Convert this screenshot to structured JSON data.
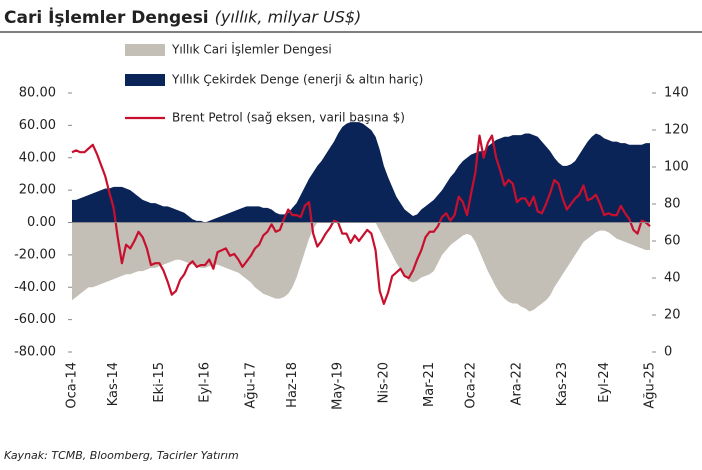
{
  "chart_data": {
    "type": "area",
    "title": "Cari İşlemler Dengesi",
    "subtitle": "(yıllık, milyar US$)",
    "source": "Kaynak: TCMB, Bloomberg, Tacirler Yatırım",
    "categories": [
      "Oca-14",
      null,
      null,
      null,
      null,
      null,
      null,
      null,
      null,
      null,
      "Kas-14",
      null,
      null,
      null,
      null,
      null,
      null,
      null,
      null,
      null,
      null,
      "Eki-15",
      null,
      null,
      null,
      null,
      null,
      null,
      null,
      null,
      null,
      null,
      "Eyl-16",
      null,
      null,
      null,
      null,
      null,
      null,
      null,
      null,
      null,
      null,
      "Ağu-17",
      null,
      null,
      null,
      null,
      null,
      null,
      null,
      null,
      null,
      "Haz-18",
      null,
      null,
      null,
      null,
      null,
      null,
      null,
      null,
      null,
      null,
      "May-19",
      null,
      null,
      null,
      null,
      null,
      null,
      null,
      null,
      null,
      null,
      "Nis-20",
      null,
      null,
      null,
      null,
      null,
      null,
      null,
      null,
      null,
      null,
      "Mar-21",
      null,
      null,
      null,
      null,
      null,
      null,
      null,
      null,
      null,
      "Oca-22",
      null,
      null,
      null,
      null,
      null,
      null,
      null,
      null,
      null,
      null,
      "Ara-22",
      null,
      null,
      null,
      null,
      null,
      null,
      null,
      null,
      null,
      null,
      "Kas-23",
      null,
      null,
      null,
      null,
      null,
      null,
      null,
      null,
      null,
      "Eyl-24",
      null,
      null,
      null,
      null,
      null,
      null,
      null,
      null,
      null,
      null,
      "Ağu-25"
    ],
    "series": [
      {
        "name": "Yıllık Cari İşlemler Dengesi",
        "type": "area",
        "color": "#c3beb6",
        "values": [
          -48,
          -46,
          -44,
          -42,
          -40,
          -40,
          -39,
          -38,
          -37,
          -36,
          -35,
          -34,
          -33,
          -32,
          -32,
          -31,
          -30,
          -30,
          -29,
          -28,
          -28,
          -27,
          -26,
          -25,
          -24,
          -23,
          -23,
          -24,
          -25,
          -26,
          -27,
          -28,
          -28,
          -27,
          -26,
          -26,
          -27,
          -28,
          -29,
          -30,
          -31,
          -33,
          -35,
          -37,
          -40,
          -42,
          -44,
          -45,
          -46,
          -47,
          -47,
          -46,
          -44,
          -40,
          -34,
          -26,
          -18,
          -10,
          -4,
          0,
          2,
          4,
          5,
          6,
          7,
          8,
          8,
          8,
          7,
          6,
          5,
          4,
          2,
          0,
          -5,
          -10,
          -15,
          -20,
          -25,
          -29,
          -33,
          -36,
          -37,
          -36,
          -34,
          -33,
          -32,
          -30,
          -25,
          -20,
          -17,
          -14,
          -12,
          -10,
          -8,
          -7,
          -8,
          -12,
          -18,
          -24,
          -30,
          -35,
          -40,
          -44,
          -47,
          -49,
          -50,
          -50,
          -52,
          -53,
          -55,
          -54,
          -52,
          -50,
          -48,
          -45,
          -40,
          -36,
          -32,
          -28,
          -24,
          -20,
          -16,
          -12,
          -10,
          -8,
          -6,
          -5,
          -5,
          -6,
          -8,
          -10,
          -11,
          -12,
          -13,
          -14,
          -15,
          -16,
          -17,
          -17
        ]
      },
      {
        "name": "Yıllık Çekirdek Denge (enerji & altın hariç)",
        "type": "area",
        "color": "#0b2458",
        "values": [
          14,
          14,
          15,
          16,
          17,
          18,
          19,
          20,
          21,
          21,
          22,
          22,
          22,
          21,
          20,
          18,
          16,
          14,
          13,
          12,
          12,
          11,
          10,
          10,
          9,
          8,
          7,
          6,
          4,
          2,
          1,
          1,
          0,
          1,
          2,
          3,
          4,
          5,
          6,
          7,
          8,
          9,
          10,
          10,
          10,
          10,
          9,
          9,
          8,
          6,
          5,
          5,
          6,
          9,
          12,
          17,
          22,
          27,
          31,
          35,
          38,
          42,
          46,
          50,
          55,
          59,
          61,
          62,
          62,
          62,
          61,
          59,
          57,
          53,
          45,
          35,
          28,
          22,
          16,
          12,
          8,
          6,
          4,
          5,
          8,
          10,
          12,
          14,
          17,
          20,
          24,
          28,
          31,
          35,
          38,
          40,
          42,
          43,
          44,
          44,
          47,
          49,
          51,
          52,
          53,
          53,
          54,
          54,
          54,
          55,
          55,
          54,
          53,
          50,
          47,
          44,
          40,
          37,
          35,
          35,
          36,
          38,
          42,
          46,
          50,
          53,
          55,
          54,
          52,
          51,
          50,
          50,
          49,
          49,
          48,
          48,
          48,
          48,
          49,
          49
        ]
      },
      {
        "name": "Brent Petrol (sağ eksen, varil başına $)",
        "type": "line",
        "axis": "y2",
        "color": "#c8102e",
        "values": [
          108,
          109,
          108,
          108,
          110,
          112,
          107,
          101,
          95,
          86,
          78,
          62,
          48,
          58,
          56,
          60,
          65,
          62,
          56,
          47,
          48,
          48,
          44,
          38,
          31,
          33,
          39,
          42,
          47,
          49,
          46,
          47,
          47,
          50,
          45,
          54,
          55,
          56,
          52,
          53,
          50,
          46,
          49,
          52,
          56,
          58,
          63,
          65,
          69,
          65,
          66,
          72,
          77,
          74,
          74,
          73,
          79,
          81,
          64,
          57,
          60,
          64,
          67,
          71,
          70,
          64,
          64,
          59,
          63,
          60,
          63,
          66,
          64,
          55,
          33,
          26,
          32,
          41,
          43,
          45,
          41,
          40,
          44,
          50,
          55,
          62,
          65,
          65,
          68,
          73,
          75,
          71,
          74,
          84,
          81,
          74,
          86,
          97,
          117,
          105,
          113,
          117,
          105,
          98,
          90,
          93,
          91,
          81,
          83,
          83,
          79,
          84,
          76,
          75,
          80,
          86,
          93,
          91,
          83,
          77,
          80,
          83,
          85,
          90,
          82,
          83,
          85,
          80,
          74,
          75,
          74,
          74,
          79,
          75,
          72,
          66,
          64,
          71,
          70,
          68
        ]
      }
    ],
    "ylim": [
      -80,
      80
    ],
    "yticks": [
      {
        "value": -80,
        "label": "-80.00"
      },
      {
        "value": -60,
        "label": "-60.00"
      },
      {
        "value": -40,
        "label": "-40.00"
      },
      {
        "value": -20,
        "label": "-20.00"
      },
      {
        "value": 0,
        "label": "0.00"
      },
      {
        "value": 20,
        "label": "20.00"
      },
      {
        "value": 40,
        "label": "40.00"
      },
      {
        "value": 60,
        "label": "60.00"
      },
      {
        "value": 80,
        "label": "80.00"
      }
    ],
    "y2lim": [
      0,
      140
    ],
    "y2ticks": [
      0,
      20,
      40,
      60,
      80,
      100,
      120,
      140
    ],
    "legend": "top-left"
  }
}
